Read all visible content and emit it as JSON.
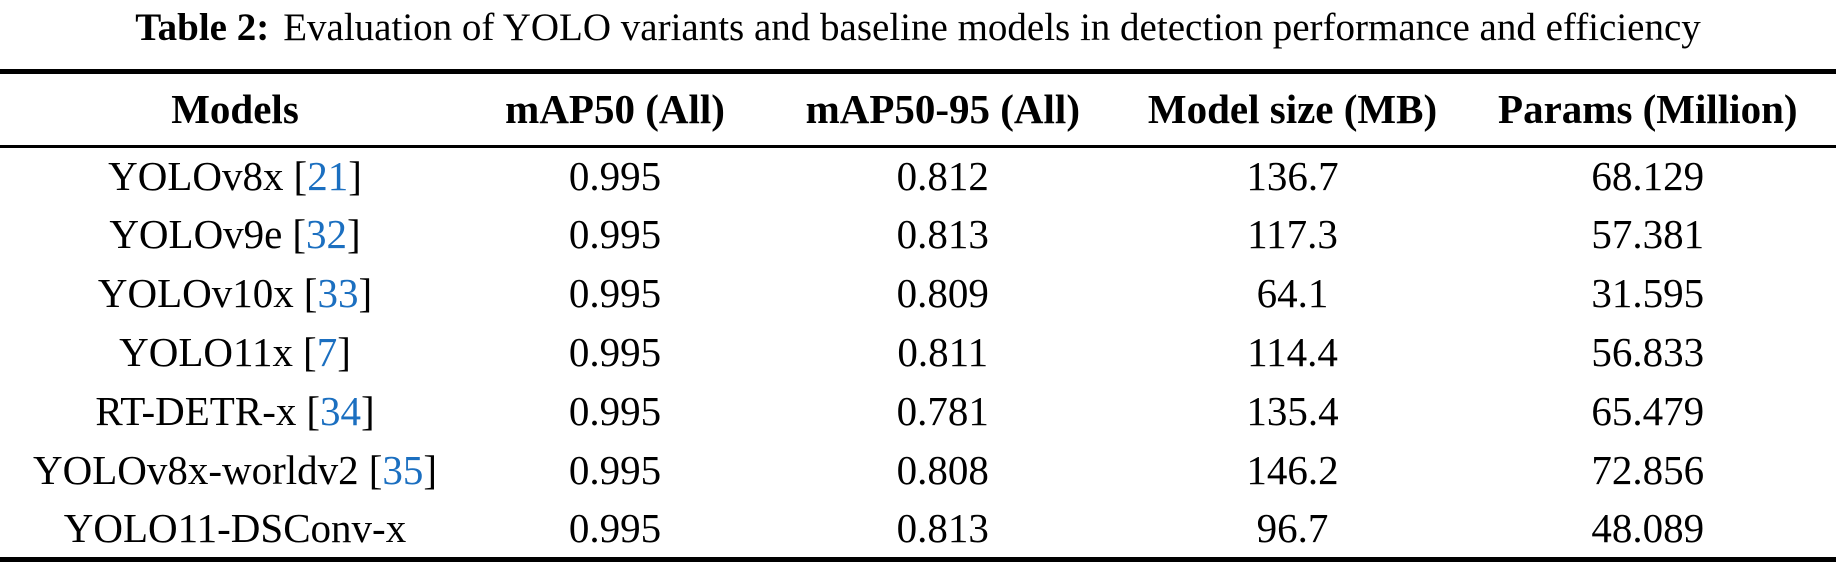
{
  "caption": {
    "label": "Table 2:",
    "text": "Evaluation of YOLO variants and baseline models in detection performance and efficiency"
  },
  "colors": {
    "citation_link": "#1b6fc0",
    "rule": "#000000",
    "text": "#000000",
    "background": "#ffffff"
  },
  "citation_brackets": {
    "open": "[",
    "close": "]"
  },
  "table": {
    "columns": [
      "Models",
      "mAP50 (All)",
      "mAP50-95 (All)",
      "Model size (MB)",
      "Params (Million)"
    ],
    "rows": [
      {
        "model": "YOLOv8x",
        "cite": "21",
        "map50_all": "0.995",
        "map50_95_all": "0.812",
        "model_size_mb": "136.7",
        "params_million": "68.129"
      },
      {
        "model": "YOLOv9e",
        "cite": "32",
        "map50_all": "0.995",
        "map50_95_all": "0.813",
        "model_size_mb": "117.3",
        "params_million": "57.381"
      },
      {
        "model": "YOLOv10x",
        "cite": "33",
        "map50_all": "0.995",
        "map50_95_all": "0.809",
        "model_size_mb": "64.1",
        "params_million": "31.595"
      },
      {
        "model": "YOLO11x",
        "cite": "7",
        "map50_all": "0.995",
        "map50_95_all": "0.811",
        "model_size_mb": "114.4",
        "params_million": "56.833"
      },
      {
        "model": "RT-DETR-x",
        "cite": "34",
        "map50_all": "0.995",
        "map50_95_all": "0.781",
        "model_size_mb": "135.4",
        "params_million": "65.479"
      },
      {
        "model": "YOLOv8x-worldv2",
        "cite": "35",
        "map50_all": "0.995",
        "map50_95_all": "0.808",
        "model_size_mb": "146.2",
        "params_million": "72.856"
      },
      {
        "model": "YOLO11-DSConv-x",
        "cite": null,
        "map50_all": "0.995",
        "map50_95_all": "0.813",
        "model_size_mb": "96.7",
        "params_million": "48.089"
      }
    ]
  }
}
